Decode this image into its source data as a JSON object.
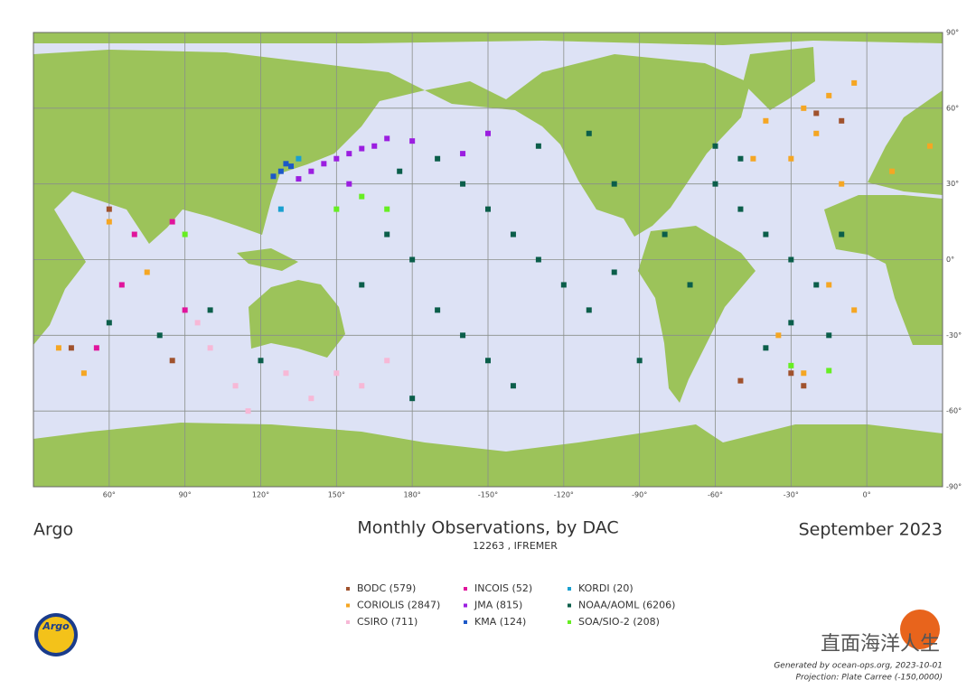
{
  "chart_data": {
    "type": "scatter",
    "title": "Monthly Observations, by DAC",
    "subtitle": "12263  , IFREMER",
    "left_label": "Argo",
    "right_label": "September 2023",
    "xlim": [
      30,
      390
    ],
    "ylim": [
      -90,
      90
    ],
    "grid": true,
    "xticks": [
      {
        "value": 60,
        "label": "60°"
      },
      {
        "value": 90,
        "label": "90°"
      },
      {
        "value": 120,
        "label": "120°"
      },
      {
        "value": 150,
        "label": "150°"
      },
      {
        "value": 180,
        "label": "180°"
      },
      {
        "value": 210,
        "label": "-150°"
      },
      {
        "value": 240,
        "label": "-120°"
      },
      {
        "value": 270,
        "label": "-90°"
      },
      {
        "value": 300,
        "label": "-60°"
      },
      {
        "value": 330,
        "label": "-30°"
      },
      {
        "value": 360,
        "label": "0°"
      }
    ],
    "yticks": [
      {
        "value": 90,
        "label": "90°"
      },
      {
        "value": 60,
        "label": "60°"
      },
      {
        "value": 30,
        "label": "30°"
      },
      {
        "value": 0,
        "label": "0°"
      },
      {
        "value": -30,
        "label": "-30°"
      },
      {
        "value": -60,
        "label": "-60°"
      },
      {
        "value": -90,
        "label": "-90°"
      }
    ],
    "series": [
      {
        "name": "BODC (579)",
        "color": "#a0522d",
        "x": [
          60,
          45,
          330,
          335,
          340,
          350,
          310,
          85
        ],
        "values": [
          20,
          -35,
          -45,
          -50,
          58,
          55,
          -48,
          -40
        ]
      },
      {
        "name": "CORIOLIS (2847)",
        "color": "#f5a623",
        "x": [
          335,
          340,
          345,
          330,
          350,
          320,
          315,
          355,
          345,
          355,
          335,
          40,
          50,
          60,
          75,
          385,
          325,
          370
        ],
        "values": [
          60,
          50,
          65,
          40,
          30,
          55,
          40,
          70,
          -10,
          -20,
          -45,
          -35,
          -45,
          15,
          -5,
          45,
          -30,
          35
        ]
      },
      {
        "name": "CSIRO (711)",
        "color": "#f7b8d6",
        "x": [
          100,
          110,
          130,
          150,
          140,
          160,
          115,
          95,
          170
        ],
        "values": [
          -35,
          -50,
          -45,
          -45,
          -55,
          -50,
          -60,
          -25,
          -40
        ]
      },
      {
        "name": "INCOIS (52)",
        "color": "#e0149c",
        "x": [
          70,
          85,
          65,
          90,
          55
        ],
        "values": [
          10,
          15,
          -10,
          -20,
          -35
        ]
      },
      {
        "name": "JMA (815)",
        "color": "#9b1ee0",
        "x": [
          140,
          145,
          150,
          155,
          160,
          165,
          135,
          170,
          180,
          200,
          210,
          155
        ],
        "values": [
          35,
          38,
          40,
          42,
          44,
          45,
          32,
          48,
          47,
          42,
          50,
          30
        ]
      },
      {
        "name": "KMA (124)",
        "color": "#1c58c8",
        "x": [
          128,
          130,
          125,
          132
        ],
        "values": [
          35,
          38,
          33,
          37
        ]
      },
      {
        "name": "KORDI (20)",
        "color": "#1aa0d0",
        "x": [
          135,
          128
        ],
        "values": [
          40,
          20
        ]
      },
      {
        "name": "NOAA/AOML (6206)",
        "color": "#0b5e4a",
        "x": [
          190,
          200,
          210,
          220,
          230,
          240,
          250,
          200,
          210,
          220,
          180,
          170,
          160,
          190,
          260,
          280,
          290,
          300,
          310,
          320,
          330,
          340,
          330,
          300,
          310,
          100,
          80,
          120,
          60,
          250,
          230,
          270,
          180,
          260,
          175,
          350,
          345,
          320
        ],
        "values": [
          40,
          30,
          20,
          10,
          0,
          -10,
          -20,
          -30,
          -40,
          -50,
          0,
          10,
          -10,
          -20,
          30,
          10,
          -10,
          30,
          20,
          10,
          0,
          -10,
          -25,
          45,
          40,
          -20,
          -30,
          -40,
          -25,
          50,
          45,
          -40,
          -55,
          -5,
          35,
          10,
          -30,
          -35
        ]
      },
      {
        "name": "SOA/SIO-2 (208)",
        "color": "#66ee22",
        "x": [
          90,
          150,
          160,
          170,
          330,
          345
        ],
        "values": [
          10,
          20,
          25,
          20,
          -42,
          -44
        ]
      }
    ]
  },
  "footer": {
    "generated": "Generated by ocean-ops.org, 2023-10-01",
    "projection": "Projection: Plate Carree (-150,0000)",
    "watermark": "直面海洋人生",
    "logo": "Argo"
  }
}
